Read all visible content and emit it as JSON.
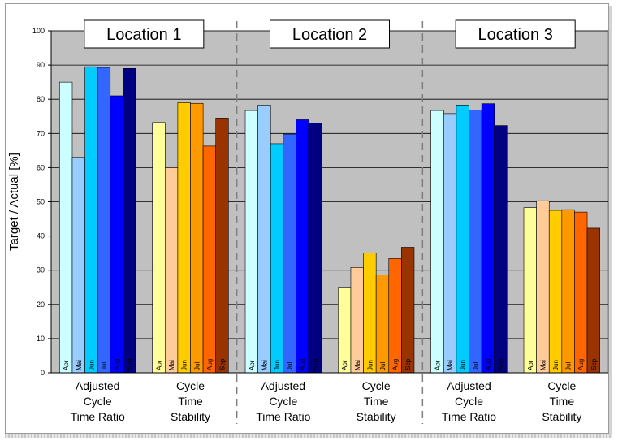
{
  "chart_data": {
    "type": "bar",
    "ylabel": "Target / Actual [%]",
    "ylim": [
      0,
      100
    ],
    "yticks": [
      0,
      10,
      20,
      30,
      40,
      50,
      60,
      70,
      80,
      90,
      100
    ],
    "grid": true,
    "months": [
      "Apr",
      "Mai",
      "Jun",
      "Jul",
      "Aug",
      "Sep"
    ],
    "palettes": {
      "ratio": [
        "#ccffff",
        "#99ccff",
        "#00ccff",
        "#3366ff",
        "#0000ff",
        "#000080"
      ],
      "stability": [
        "#ffff99",
        "#ffcc99",
        "#ffcc00",
        "#ff9900",
        "#ff6600",
        "#993300"
      ]
    },
    "locations": [
      {
        "name": "Location 1",
        "groups": [
          {
            "label": [
              "Adjusted",
              "Cycle",
              "Time Ratio"
            ],
            "palette": "ratio",
            "values": [
              85,
              63,
              89.5,
              89.3,
              81,
              89
            ]
          },
          {
            "label": [
              "Cycle",
              "Time",
              "Stability"
            ],
            "palette": "stability",
            "values": [
              73.2,
              60,
              79,
              78.8,
              66.3,
              74.5
            ]
          }
        ]
      },
      {
        "name": "Location 2",
        "groups": [
          {
            "label": [
              "Adjusted",
              "Cycle",
              "Time Ratio"
            ],
            "palette": "ratio",
            "values": [
              76.7,
              78.3,
              67,
              69.8,
              74,
              73
            ]
          },
          {
            "label": [
              "Cycle",
              "Time",
              "Stability"
            ],
            "palette": "stability",
            "values": [
              25,
              30.8,
              35,
              28.6,
              33.4,
              36.7
            ]
          }
        ]
      },
      {
        "name": "Location 3",
        "groups": [
          {
            "label": [
              "Adjusted",
              "Cycle",
              "Time Ratio"
            ],
            "palette": "ratio",
            "values": [
              76.7,
              75.8,
              78.3,
              76.8,
              78.7,
              72.3
            ]
          },
          {
            "label": [
              "Cycle",
              "Time",
              "Stability"
            ],
            "palette": "stability",
            "values": [
              48.3,
              50.3,
              47.5,
              47.7,
              47,
              42.3
            ]
          }
        ]
      }
    ]
  }
}
